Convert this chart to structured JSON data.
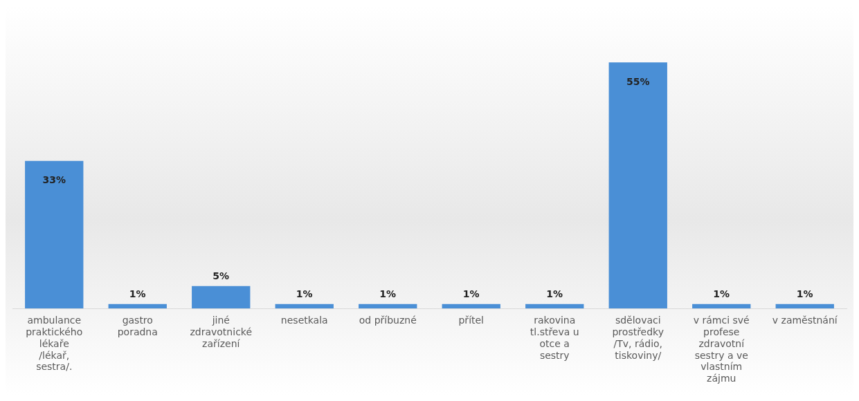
{
  "chart_data": {
    "type": "bar",
    "categories": [
      "ambulance praktického lékaře /lékař, sestra/.",
      "gastro poradna",
      "jiné zdravotnické zařízení",
      "nesetkala",
      "od příbuzné",
      "přítel",
      "rakovina tl.střeva u otce a sestry",
      "sdělovaci prostředky /Tv, rádio, tiskoviny/",
      "v rámci své profese zdravotní sestry a ve vlastním zájmu",
      "v zaměstnání"
    ],
    "values": [
      33,
      1,
      5,
      1,
      1,
      1,
      1,
      55,
      1,
      1
    ],
    "value_labels": [
      "33%",
      "1%",
      "5%",
      "1%",
      "1%",
      "1%",
      "1%",
      "55%",
      "1%",
      "1%"
    ],
    "color": "#4a8fd6",
    "grid": false,
    "legend": false
  }
}
